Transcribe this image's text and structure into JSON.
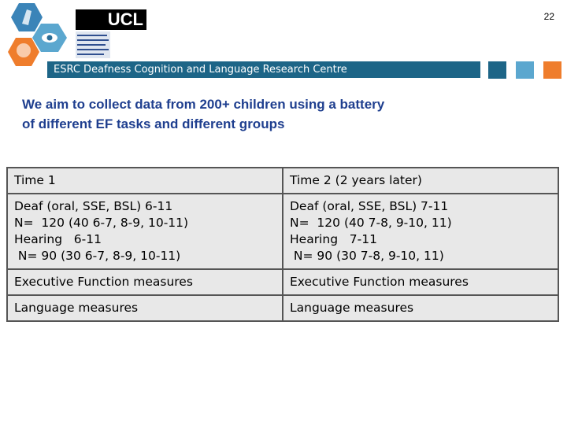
{
  "page_number": "22",
  "logo": {
    "ucl": "UCL"
  },
  "header": {
    "title": "ESRC Deafness Cognition and Language Research Centre"
  },
  "heading": {
    "lines": [
      "We aim to collect data from 200+ children using a battery",
      "of different EF tasks and different groups"
    ]
  },
  "table": {
    "rows": [
      [
        [
          "Time 1"
        ],
        [
          "Time 2 (2 years later)"
        ]
      ],
      [
        [
          "Deaf (oral, SSE, BSL) 6-11",
          "N=  120 (40 6-7, 8-9, 10-11)",
          "Hearing   6-11",
          " N= 90 (30 6-7, 8-9, 10-11)"
        ],
        [
          "Deaf (oral, SSE, BSL) 7-11",
          "N=  120 (40 7-8, 9-10, 11)",
          "Hearing   7-11",
          " N= 90 (30 7-8, 9-10, 11)"
        ]
      ],
      [
        [
          "Executive Function measures"
        ],
        [
          "Executive Function measures"
        ]
      ],
      [
        [
          "Language measures"
        ],
        [
          "Language measures"
        ]
      ]
    ]
  }
}
